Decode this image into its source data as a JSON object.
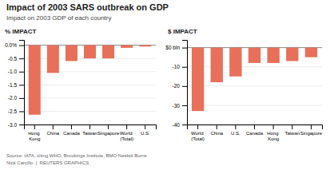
{
  "chart_data": [
    {
      "type": "bar",
      "title": "Impact of 2003 SARS outbreak on GDP",
      "subtitle": "Impact on 2003 GDP of each country",
      "ylabel": "% IMPACT",
      "annotations": [
        "Source: IATA, citing WHO, Brookings Institute, BMO Nesbitt Burns",
        "Nick Carcillo  |  REUTERS GRAPHICS"
      ],
      "categories": [
        "Hong Kong",
        "China",
        "Canada",
        "Taiwan",
        "Singapore",
        "World (Total)",
        "U.S."
      ],
      "values": [
        -2.63,
        -1.05,
        -0.6,
        -0.5,
        -0.5,
        -0.1,
        -0.05
      ],
      "color": "#e8705a",
      "ylim": [
        -3.0,
        0.2
      ],
      "yticks": [
        {
          "value": 0.0,
          "label": "0.0%"
        },
        -0.5,
        {
          "value": -1.0,
          "label": "-1.0"
        },
        -1.5,
        {
          "value": -2.0,
          "label": "-2.0"
        },
        -2.5,
        {
          "value": -3.0,
          "label": "-3.0"
        }
      ],
      "grid": true
    },
    {
      "type": "bar",
      "ylabel": "$ IMPACT",
      "categories": [
        "World (Total)",
        "China",
        "U.S.",
        "Canada",
        "Hong Kong",
        "Taiwan",
        "Singapore"
      ],
      "values": [
        -33,
        -18,
        -15,
        -8,
        -8,
        -7,
        -5
      ],
      "color": "#e8705a",
      "ylim": [
        -40,
        4
      ],
      "yticks": [
        {
          "value": 0,
          "label": "$0 bln"
        },
        -10,
        -20,
        -30,
        -40
      ],
      "grid": true
    }
  ]
}
